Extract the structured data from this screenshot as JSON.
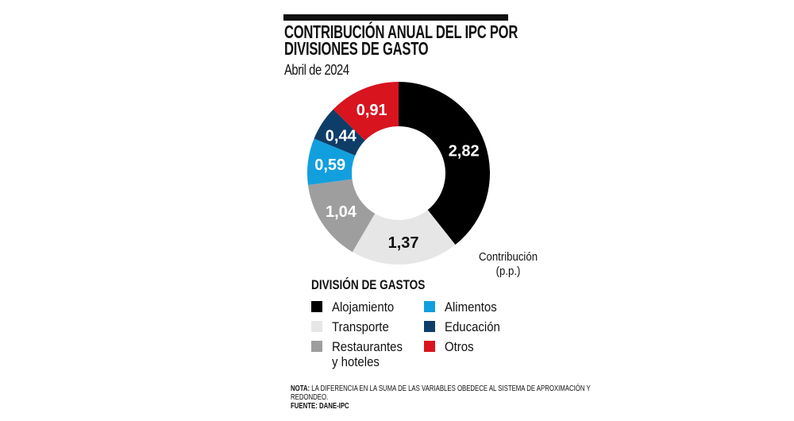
{
  "header": {
    "title_line1": "CONTRIBUCIÓN ANUAL DEL IPC POR",
    "title_line2": "DIVISIONES DE GASTO",
    "subtitle": "Abril de 2024"
  },
  "chart_data": {
    "type": "pie",
    "donut": true,
    "title": "CONTRIBUCIÓN ANUAL DEL IPC POR DIVISIONES DE GASTO",
    "subtitle": "Abril de 2024",
    "unit_label": "Contribución (p.p.)",
    "start": "top",
    "direction": "clockwise",
    "slices": [
      {
        "name": "Alojamiento",
        "value": 2.82,
        "label": "2,82",
        "color": "#000000",
        "label_color": "#ffffff"
      },
      {
        "name": "Transporte",
        "value": 1.37,
        "label": "1,37",
        "color": "#e6e6e6",
        "label_color": "#111111"
      },
      {
        "name": "Restaurantes y hoteles",
        "value": 1.04,
        "label": "1,04",
        "color": "#9e9e9e",
        "label_color": "#ffffff"
      },
      {
        "name": "Alimentos",
        "value": 0.59,
        "label": "0,59",
        "color": "#129fde",
        "label_color": "#ffffff"
      },
      {
        "name": "Educación",
        "value": 0.44,
        "label": "0,44",
        "color": "#0e3d68",
        "label_color": "#ffffff"
      },
      {
        "name": "Otros",
        "value": 0.91,
        "label": "0,91",
        "color": "#d8141f",
        "label_color": "#ffffff"
      }
    ]
  },
  "legend": {
    "title": "DIVISIÓN DE GASTOS",
    "items": [
      {
        "label": "Alojamiento",
        "color": "#000000"
      },
      {
        "label": "Transporte",
        "color": "#e6e6e6"
      },
      {
        "label": "Restaurantes",
        "label2": "y hoteles",
        "color": "#9e9e9e"
      },
      {
        "label": "Alimentos",
        "color": "#129fde"
      },
      {
        "label": "Educación",
        "color": "#0e3d68"
      },
      {
        "label": "Otros",
        "color": "#d8141f"
      }
    ]
  },
  "unit": {
    "line1": "Contribución",
    "line2": "(p.p.)"
  },
  "footer": {
    "note_label": "NOTA:",
    "note_text": " LA DIFERENCIA EN LA SUMA DE LAS VARIABLES OBEDECE AL SISTEMA DE APROXIMACIÓN Y REDONDEO.",
    "source": "FUENTE: DANE-IPC"
  }
}
